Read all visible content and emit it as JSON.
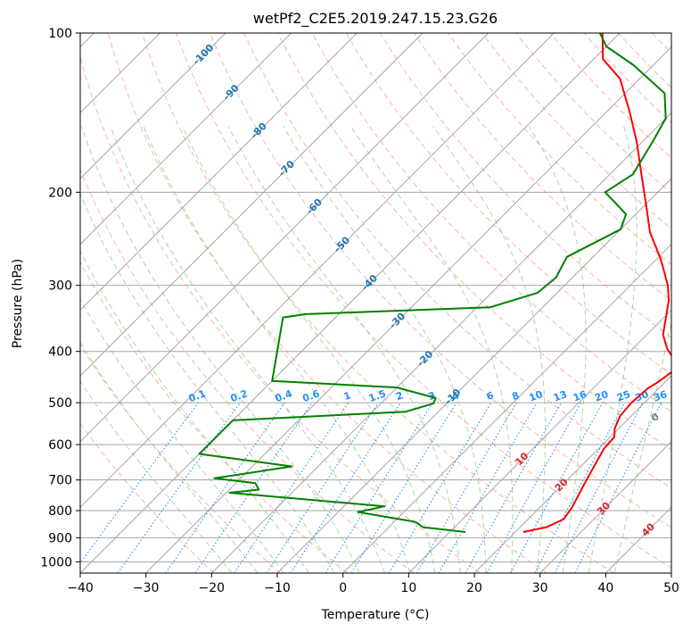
{
  "chart_data": {
    "type": "line",
    "title": "wetPf2_C2E5.2019.247.15.23.G26",
    "xlabel": "Temperature (°C)",
    "ylabel": "Pressure (hPa)",
    "xlim": [
      -40,
      50
    ],
    "ylim": [
      1050,
      100
    ],
    "y_scale": "log",
    "skew": true,
    "grid": true,
    "x_ticks": [
      -40,
      -30,
      -20,
      -10,
      0,
      10,
      20,
      30,
      40,
      50
    ],
    "y_ticks": [
      100,
      200,
      300,
      400,
      500,
      600,
      700,
      800,
      900,
      1000
    ],
    "colors": {
      "temperature": "#ff0000",
      "dewpoint": "#008000",
      "isotherm": "#a6a6a6",
      "dry_adiabat": "#ffb3a0",
      "moist_adiabat": "#a8d8a8",
      "mixing_ratio": "#1e90ff",
      "isotherm_label": "#1f77b4",
      "warm_isotherm_label": "#d62728",
      "zero_label": "#808080"
    },
    "series": [
      {
        "key": "temperature",
        "points": [
          {
            "t": 21.2,
            "p": 878
          },
          {
            "t": 24.0,
            "p": 860
          },
          {
            "t": 25.4,
            "p": 830
          },
          {
            "t": 24.9,
            "p": 790
          },
          {
            "t": 23.6,
            "p": 730
          },
          {
            "t": 22.0,
            "p": 660
          },
          {
            "t": 20.8,
            "p": 610
          },
          {
            "t": 20.6,
            "p": 580
          },
          {
            "t": 19.4,
            "p": 560
          },
          {
            "t": 18.3,
            "p": 530
          },
          {
            "t": 18.0,
            "p": 500
          },
          {
            "t": 18.3,
            "p": 470
          },
          {
            "t": 18.8,
            "p": 460
          },
          {
            "t": 19.2,
            "p": 448
          },
          {
            "t": 19.5,
            "p": 435
          },
          {
            "t": 18.0,
            "p": 415
          },
          {
            "t": 15.2,
            "p": 395
          },
          {
            "t": 12.5,
            "p": 372
          },
          {
            "t": 10.3,
            "p": 345
          },
          {
            "t": 8.1,
            "p": 320
          },
          {
            "t": 5.7,
            "p": 300
          },
          {
            "t": 0.7,
            "p": 268
          },
          {
            "t": -5.1,
            "p": 238
          },
          {
            "t": -10.1,
            "p": 210
          },
          {
            "t": -15.2,
            "p": 185
          },
          {
            "t": -21.0,
            "p": 160
          },
          {
            "t": -26.8,
            "p": 140
          },
          {
            "t": -33.0,
            "p": 122
          },
          {
            "t": -38.6,
            "p": 112
          },
          {
            "t": -42.6,
            "p": 100
          }
        ]
      },
      {
        "key": "dewpoint",
        "points": [
          {
            "t": 12.4,
            "p": 878
          },
          {
            "t": 5.2,
            "p": 860
          },
          {
            "t": 3.2,
            "p": 840
          },
          {
            "t": -7.0,
            "p": 805
          },
          {
            "t": -3.8,
            "p": 785
          },
          {
            "t": -29.5,
            "p": 740
          },
          {
            "t": -25.5,
            "p": 730
          },
          {
            "t": -27.0,
            "p": 710
          },
          {
            "t": -34.0,
            "p": 695
          },
          {
            "t": -24.0,
            "p": 660
          },
          {
            "t": -40.0,
            "p": 625
          },
          {
            "t": -40.0,
            "p": 540
          },
          {
            "t": -15.0,
            "p": 520
          },
          {
            "t": -12.0,
            "p": 502
          },
          {
            "t": -12.5,
            "p": 490
          },
          {
            "t": -20.0,
            "p": 468
          },
          {
            "t": -40.0,
            "p": 455
          },
          {
            "t": -48.0,
            "p": 345
          },
          {
            "t": -45.0,
            "p": 340
          },
          {
            "t": -18.0,
            "p": 330
          },
          {
            "t": -13.0,
            "p": 310
          },
          {
            "t": -12.5,
            "p": 290
          },
          {
            "t": -14.0,
            "p": 265
          },
          {
            "t": -10.0,
            "p": 235
          },
          {
            "t": -11.5,
            "p": 220
          },
          {
            "t": -18.0,
            "p": 200
          },
          {
            "t": -16.5,
            "p": 185
          },
          {
            "t": -18.5,
            "p": 160
          },
          {
            "t": -20.0,
            "p": 145
          },
          {
            "t": -24.0,
            "p": 130
          },
          {
            "t": -33.0,
            "p": 115
          },
          {
            "t": -40.0,
            "p": 106
          },
          {
            "t": -43.0,
            "p": 100
          }
        ]
      }
    ],
    "isotherm_labels": [
      "-100",
      "-90",
      "-80",
      "-70",
      "-60",
      "-50",
      "-40",
      "-30",
      "-20",
      "-10",
      "0",
      "10",
      "20",
      "30",
      "40"
    ],
    "mixing_ratio_labels": [
      "0.1",
      "0.2",
      "0.4",
      "0.6",
      "1",
      "1.5",
      "2",
      "3",
      "4",
      "6",
      "8",
      "10",
      "13",
      "16",
      "20",
      "25",
      "30",
      "36"
    ]
  }
}
